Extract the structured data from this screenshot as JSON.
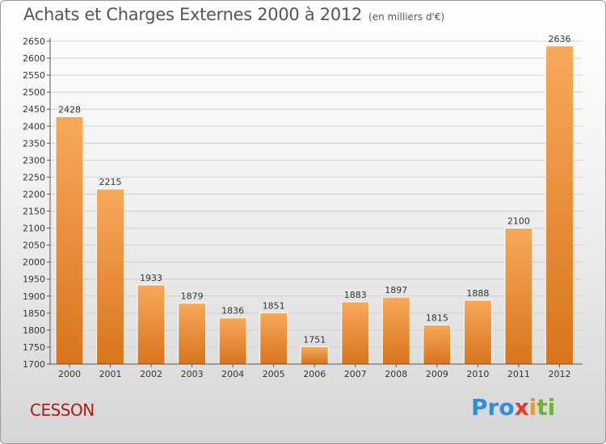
{
  "header": {
    "title": "Achats et Charges Externes 2000 à 2012",
    "subtitle": "(en milliers d'€)"
  },
  "footer": {
    "place": "CESSON",
    "logo": {
      "p1": "Pro",
      "p2": "x",
      "p3": "i",
      "p4": "ti"
    }
  },
  "colors": {
    "bar_light": "#f7a95a",
    "bar_dark": "#d9741c",
    "grid": "#cfcfcf",
    "axis": "#555555",
    "place_text": "#b01818"
  },
  "chart_data": {
    "type": "bar",
    "categories": [
      "2000",
      "2001",
      "2002",
      "2003",
      "2004",
      "2005",
      "2006",
      "2007",
      "2008",
      "2009",
      "2010",
      "2011",
      "2012"
    ],
    "values": [
      2428,
      2215,
      1933,
      1879,
      1836,
      1851,
      1751,
      1883,
      1897,
      1815,
      1888,
      2100,
      2636
    ],
    "title": "Achats et Charges Externes 2000 à 2012",
    "ylim": [
      1700,
      2650
    ],
    "ytick_step": 50,
    "grid": true,
    "data_labels": true
  }
}
